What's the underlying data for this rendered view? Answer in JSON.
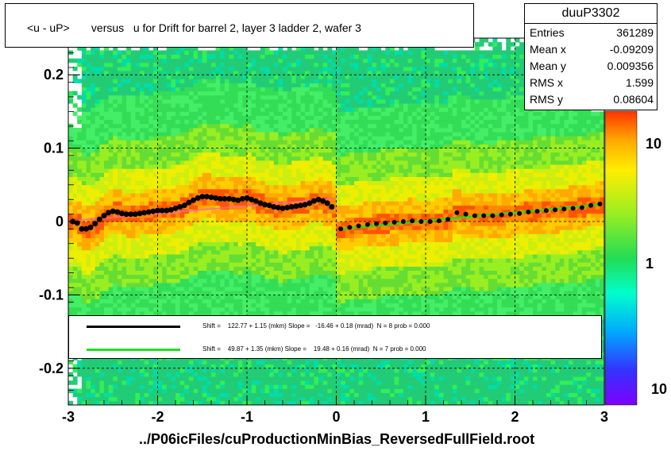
{
  "title": "<u - uP>       versus   u for Drift for barrel 2, layer 3 ladder 2, wafer 3",
  "stats": {
    "name": "duuP3302",
    "rows": [
      {
        "key": "Entries",
        "value": "361289"
      },
      {
        "key": "Mean x",
        "value": "-0.09209"
      },
      {
        "key": "Mean y",
        "value": "0.009356"
      },
      {
        "key": "RMS x",
        "value": "1.599"
      },
      {
        "key": "RMS y",
        "value": "0.08604"
      }
    ]
  },
  "legend": [
    {
      "color": "#000000",
      "text": "Shift =    122.77 + 1.15 (mkm) Slope =   -16.46 + 0.18 (mrad)  N = 8 prob = 0.000"
    },
    {
      "color": "#22dd22",
      "text": "Shift =    49.87 + 1.35 (mkm) Slope =    19.48 + 0.16 (mrad)  N = 7 prob = 0.000"
    }
  ],
  "x_axis_title": "../P06icFiles/cuProductionMinBias_ReversedFullField.root",
  "z_labels": [
    "10",
    "1",
    "10"
  ],
  "chart_data": {
    "type": "heatmap",
    "xlim": [
      -3,
      3
    ],
    "ylim": [
      -0.25,
      0.25
    ],
    "x_ticks": [
      "-3",
      "-2",
      "-1",
      "0",
      "1",
      "2",
      "3"
    ],
    "y_ticks": [
      "0.2",
      "0.1",
      "0",
      "-0.1",
      "-0.2"
    ],
    "grid": true,
    "profile_black": {
      "x": [
        -2.95,
        -2.9,
        -2.85,
        -2.8,
        -2.75,
        -2.7,
        -2.65,
        -2.6,
        -2.55,
        -2.5,
        -2.45,
        -2.4,
        -2.35,
        -2.3,
        -2.25,
        -2.2,
        -2.15,
        -2.1,
        -2.05,
        -2.0,
        -1.95,
        -1.9,
        -1.85,
        -1.8,
        -1.75,
        -1.7,
        -1.65,
        -1.6,
        -1.55,
        -1.5,
        -1.45,
        -1.4,
        -1.35,
        -1.3,
        -1.25,
        -1.2,
        -1.15,
        -1.1,
        -1.05,
        -1.0,
        -0.95,
        -0.9,
        -0.85,
        -0.8,
        -0.75,
        -0.7,
        -0.65,
        -0.6,
        -0.55,
        -0.5,
        -0.45,
        -0.4,
        -0.35,
        -0.3,
        -0.25,
        -0.2,
        -0.15,
        -0.1,
        -0.05
      ],
      "y": [
        0.0,
        -0.002,
        -0.01,
        -0.01,
        -0.008,
        -0.003,
        0.003,
        0.008,
        0.012,
        0.014,
        0.013,
        0.011,
        0.01,
        0.01,
        0.01,
        0.011,
        0.012,
        0.013,
        0.014,
        0.015,
        0.015,
        0.015,
        0.016,
        0.018,
        0.02,
        0.022,
        0.026,
        0.029,
        0.032,
        0.034,
        0.034,
        0.033,
        0.032,
        0.031,
        0.031,
        0.031,
        0.03,
        0.029,
        0.031,
        0.032,
        0.03,
        0.028,
        0.025,
        0.023,
        0.022,
        0.02,
        0.019,
        0.018,
        0.019,
        0.02,
        0.021,
        0.022,
        0.023,
        0.025,
        0.028,
        0.03,
        0.028,
        0.025,
        0.02
      ]
    },
    "profile_right": {
      "x": [
        0.05,
        0.15,
        0.25,
        0.35,
        0.45,
        0.55,
        0.65,
        0.75,
        0.85,
        0.95,
        1.05,
        1.15,
        1.25,
        1.35,
        1.45,
        1.55,
        1.65,
        1.75,
        1.85,
        1.95,
        2.05,
        2.15,
        2.25,
        2.35,
        2.45,
        2.55,
        2.65,
        2.75,
        2.85,
        2.95
      ],
      "y": [
        -0.01,
        -0.008,
        -0.006,
        -0.004,
        -0.003,
        -0.002,
        -0.001,
        0.0,
        0.001,
        0.0,
        0.0,
        0.001,
        0.003,
        0.012,
        0.01,
        0.008,
        0.008,
        0.008,
        0.009,
        0.01,
        0.011,
        0.013,
        0.014,
        0.015,
        0.016,
        0.017,
        0.018,
        0.019,
        0.022,
        0.024
      ]
    },
    "fit_black": {
      "x": [
        -2.95,
        -0.05
      ],
      "y": [
        0.001,
        0.031
      ]
    },
    "fit_green": {
      "x": [
        0.05,
        2.95
      ],
      "y": [
        -0.01,
        0.023
      ]
    }
  }
}
